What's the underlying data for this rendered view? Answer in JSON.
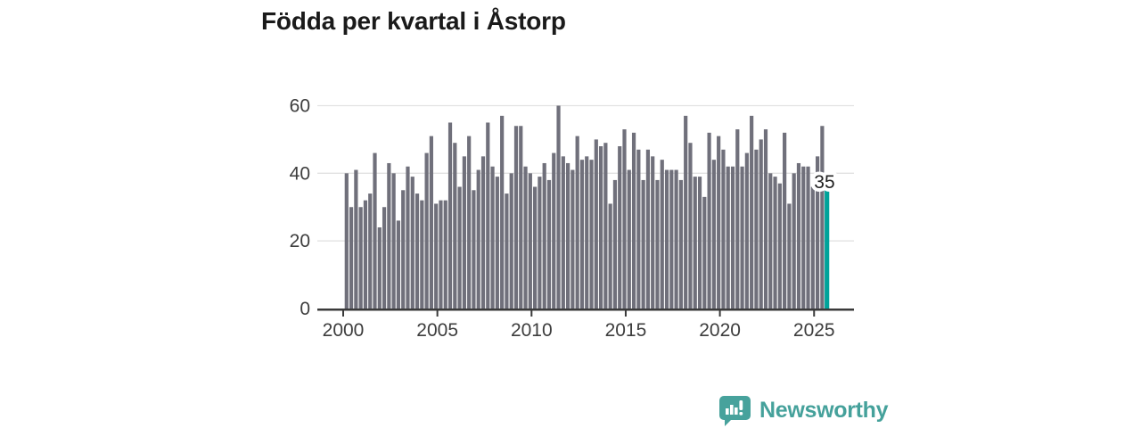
{
  "title": "Födda per kvartal i Åstorp",
  "logo": {
    "text": "Newsworthy",
    "color": "#45a19b",
    "icon": "speech-bubble-bar-chart-icon"
  },
  "chart_data": {
    "type": "bar",
    "title": "Födda per kvartal i Åstorp",
    "frequency": "quarterly",
    "x_start": "2000-Q1",
    "x_end": "2025-Q3",
    "values": [
      40,
      30,
      41,
      30,
      32,
      34,
      46,
      24,
      30,
      43,
      40,
      26,
      35,
      42,
      39,
      34,
      32,
      46,
      51,
      31,
      32,
      32,
      55,
      49,
      36,
      45,
      51,
      35,
      41,
      45,
      55,
      42,
      39,
      57,
      34,
      40,
      54,
      54,
      42,
      40,
      36,
      39,
      43,
      38,
      46,
      60,
      45,
      43,
      41,
      51,
      44,
      45,
      44,
      50,
      48,
      49,
      31,
      38,
      48,
      53,
      41,
      52,
      47,
      38,
      47,
      45,
      38,
      44,
      41,
      41,
      41,
      38,
      57,
      49,
      39,
      39,
      33,
      52,
      44,
      51,
      47,
      42,
      42,
      53,
      42,
      46,
      57,
      47,
      50,
      53,
      40,
      39,
      37,
      52,
      31,
      40,
      43,
      42,
      42,
      36,
      45,
      54,
      35
    ],
    "x_tick_labels": [
      "2000",
      "2005",
      "2010",
      "2015",
      "2020",
      "2025"
    ],
    "x_tick_years": [
      2000,
      2005,
      2010,
      2015,
      2020,
      2025
    ],
    "y_ticks": [
      0,
      20,
      40,
      60
    ],
    "ylim": [
      0,
      60
    ],
    "grid": "horizontal",
    "bar_color": "#70707b",
    "axis_color": "#3a3a3a",
    "grid_color": "#e2e2e2",
    "label_color": "#3d3d3d",
    "highlight": {
      "quarter": "2025-Q3",
      "value": 35,
      "label": "35",
      "color": "#00a39a"
    }
  }
}
